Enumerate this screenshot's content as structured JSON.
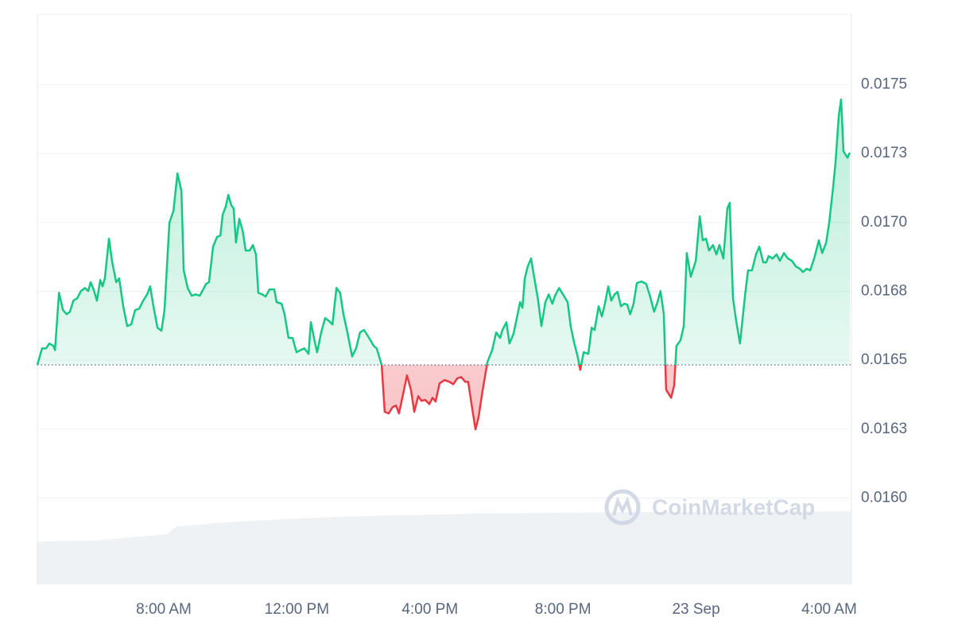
{
  "chart_data": {
    "type": "line",
    "x": [
      4.2,
      4.34,
      4.46,
      4.56,
      4.68,
      4.73,
      4.85,
      4.97,
      5.08,
      5.18,
      5.28,
      5.4,
      5.51,
      5.63,
      5.73,
      5.8,
      5.9,
      5.99,
      6.09,
      6.16,
      6.23,
      6.35,
      6.45,
      6.57,
      6.66,
      6.78,
      6.9,
      7.02,
      7.14,
      7.26,
      7.38,
      7.5,
      7.59,
      7.69,
      7.81,
      7.93,
      8.02,
      8.17,
      8.29,
      8.41,
      8.53,
      8.6,
      8.72,
      8.84,
      8.96,
      9.08,
      9.17,
      9.27,
      9.36,
      9.48,
      9.6,
      9.7,
      9.77,
      9.86,
      9.94,
      10.03,
      10.1,
      10.17,
      10.27,
      10.37,
      10.46,
      10.58,
      10.68,
      10.77,
      10.84,
      10.96,
      11.06,
      11.18,
      11.32,
      11.39,
      11.54,
      11.63,
      11.75,
      11.87,
      11.99,
      12.11,
      12.23,
      12.35,
      12.42,
      12.54,
      12.61,
      12.73,
      12.85,
      12.95,
      13.07,
      13.19,
      13.3,
      13.4,
      13.52,
      13.66,
      13.78,
      13.9,
      14.02,
      14.17,
      14.31,
      14.4,
      14.55,
      14.64,
      14.76,
      14.88,
      14.98,
      15.07,
      15.22,
      15.31,
      15.43,
      15.53,
      15.65,
      15.74,
      15.86,
      15.98,
      16.08,
      16.17,
      16.29,
      16.44,
      16.58,
      16.7,
      16.82,
      16.94,
      17.06,
      17.15,
      17.25,
      17.37,
      17.46,
      17.58,
      17.73,
      17.87,
      17.99,
      18.11,
      18.18,
      18.3,
      18.39,
      18.51,
      18.59,
      18.71,
      18.78,
      18.85,
      18.94,
      19.04,
      19.16,
      19.25,
      19.35,
      19.47,
      19.57,
      19.68,
      19.76,
      19.88,
      20.0,
      20.14,
      20.23,
      20.33,
      20.45,
      20.52,
      20.62,
      20.76,
      20.86,
      20.95,
      21.07,
      21.17,
      21.26,
      21.36,
      21.45,
      21.55,
      21.64,
      21.74,
      21.84,
      21.93,
      22.02,
      22.12,
      22.22,
      22.36,
      22.5,
      22.6,
      22.74,
      22.84,
      22.93,
      23.03,
      23.1,
      23.25,
      23.34,
      23.41,
      23.53,
      23.63,
      23.72,
      23.84,
      23.99,
      24.11,
      24.2,
      24.3,
      24.39,
      24.51,
      24.61,
      24.7,
      24.82,
      24.94,
      25.01,
      25.11,
      25.2,
      25.32,
      25.47,
      25.56,
      25.68,
      25.8,
      25.9,
      26.02,
      26.11,
      26.18,
      26.3,
      26.42,
      26.52,
      26.64,
      26.76,
      26.88,
      27.0,
      27.12,
      27.21,
      27.33,
      27.43,
      27.55,
      27.69,
      27.79,
      27.91,
      28.0,
      28.12,
      28.19,
      28.29,
      28.36,
      28.43,
      28.55,
      28.62
    ],
    "values": [
      0.016483,
      0.016543,
      0.016543,
      0.016561,
      0.016552,
      0.016537,
      0.016745,
      0.016682,
      0.016667,
      0.016676,
      0.016716,
      0.016725,
      0.016751,
      0.016762,
      0.016751,
      0.016783,
      0.016754,
      0.016716,
      0.016791,
      0.016768,
      0.016797,
      0.016941,
      0.016855,
      0.016783,
      0.016797,
      0.016696,
      0.016624,
      0.01663,
      0.016682,
      0.016687,
      0.016716,
      0.016739,
      0.016768,
      0.016696,
      0.016618,
      0.016607,
      0.016682,
      0.016999,
      0.017042,
      0.017178,
      0.017114,
      0.016826,
      0.016762,
      0.016734,
      0.016739,
      0.016734,
      0.016754,
      0.016777,
      0.016783,
      0.016912,
      0.016947,
      0.016953,
      0.017028,
      0.017057,
      0.0171,
      0.017062,
      0.017051,
      0.016927,
      0.017013,
      0.01697,
      0.016898,
      0.016898,
      0.016918,
      0.016884,
      0.016745,
      0.016739,
      0.016731,
      0.016757,
      0.016757,
      0.016711,
      0.016705,
      0.016667,
      0.016581,
      0.016581,
      0.016529,
      0.016537,
      0.016543,
      0.016523,
      0.016638,
      0.016566,
      0.016529,
      0.016601,
      0.016653,
      0.016644,
      0.01663,
      0.016762,
      0.016745,
      0.016667,
      0.016601,
      0.016514,
      0.016543,
      0.016601,
      0.01661,
      0.016581,
      0.016552,
      0.016543,
      0.016483,
      0.016313,
      0.016307,
      0.01633,
      0.016336,
      0.016307,
      0.016393,
      0.016445,
      0.016393,
      0.016313,
      0.01637,
      0.016353,
      0.016356,
      0.016341,
      0.016364,
      0.01635,
      0.016416,
      0.016428,
      0.016422,
      0.016413,
      0.016434,
      0.016439,
      0.016422,
      0.016422,
      0.016341,
      0.016249,
      0.016292,
      0.016388,
      0.016494,
      0.016537,
      0.016601,
      0.016581,
      0.01661,
      0.016638,
      0.016561,
      0.016595,
      0.016641,
      0.016711,
      0.01669,
      0.016797,
      0.01684,
      0.016869,
      0.016783,
      0.016719,
      0.016624,
      0.016711,
      0.016739,
      0.016705,
      0.016734,
      0.016762,
      0.016739,
      0.016711,
      0.016624,
      0.016566,
      0.016509,
      0.016465,
      0.016529,
      0.016523,
      0.016618,
      0.01661,
      0.016696,
      0.016659,
      0.016705,
      0.016768,
      0.016716,
      0.016739,
      0.016748,
      0.016696,
      0.016705,
      0.016702,
      0.016667,
      0.016705,
      0.01678,
      0.016786,
      0.016777,
      0.016739,
      0.016676,
      0.016711,
      0.016751,
      0.016667,
      0.016393,
      0.016364,
      0.016408,
      0.016552,
      0.016572,
      0.016624,
      0.016889,
      0.016803,
      0.016861,
      0.017022,
      0.016935,
      0.016941,
      0.016898,
      0.016918,
      0.016884,
      0.016918,
      0.016869,
      0.017051,
      0.017071,
      0.016725,
      0.016647,
      0.016561,
      0.016734,
      0.016826,
      0.016826,
      0.016884,
      0.016912,
      0.016855,
      0.016855,
      0.016878,
      0.016869,
      0.016884,
      0.016861,
      0.016889,
      0.016869,
      0.016861,
      0.01684,
      0.016832,
      0.01682,
      0.016832,
      0.016826,
      0.016869,
      0.016935,
      0.016889,
      0.016927,
      0.016999,
      0.017129,
      0.017215,
      0.017388,
      0.017446,
      0.017258,
      0.017235,
      0.017253
    ],
    "reference_value": 0.016483,
    "up_color": "#16c784",
    "down_color": "#ea3943",
    "xlim": [
      4.2,
      28.67
    ],
    "ylim": [
      0.015687,
      0.017755
    ],
    "xticks": [
      {
        "value": 8,
        "label": "8:00 AM"
      },
      {
        "value": 12,
        "label": "12:00 PM"
      },
      {
        "value": 16,
        "label": "4:00 PM"
      },
      {
        "value": 20,
        "label": "8:00 PM"
      },
      {
        "value": 24,
        "label": "23 Sep"
      },
      {
        "value": 28,
        "label": "4:00 AM"
      }
    ],
    "yticks": [
      {
        "value": 0.016,
        "label": "0.0160"
      },
      {
        "value": 0.01625,
        "label": "0.0163"
      },
      {
        "value": 0.0165,
        "label": "0.0165"
      },
      {
        "value": 0.01675,
        "label": "0.0168"
      },
      {
        "value": 0.017,
        "label": "0.0170"
      },
      {
        "value": 0.01725,
        "label": "0.0173"
      },
      {
        "value": 0.0175,
        "label": "0.0175"
      }
    ],
    "grid": true,
    "watermark": "CoinMarketCap"
  }
}
